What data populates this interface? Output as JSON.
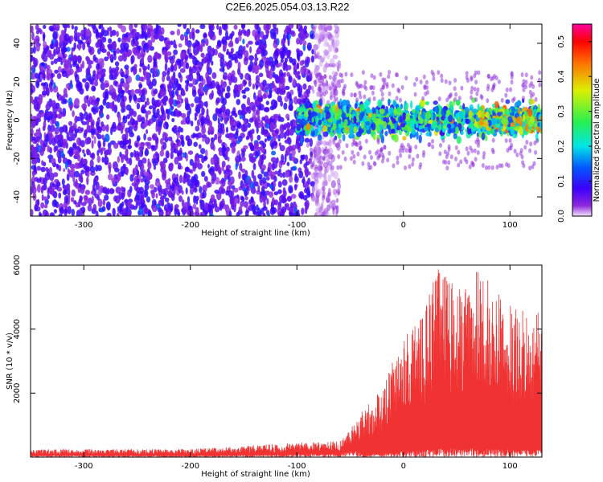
{
  "title": "C2E6.2025.054.03.13.R22",
  "chart_data": [
    {
      "type": "heatmap",
      "xlabel": "Height of straight line (km)",
      "ylabel": "Frequency (Hz)",
      "xlim": [
        -350,
        130
      ],
      "ylim": [
        -50,
        50
      ],
      "x_ticks": [
        -300,
        -200,
        -100,
        0,
        100
      ],
      "y_ticks": [
        -40,
        -20,
        0,
        20,
        40
      ],
      "colorbar": {
        "label": "Normalized spectral amplitude",
        "range": [
          0.0,
          0.55
        ],
        "ticks": [
          0.0,
          0.1,
          0.2,
          0.3,
          0.4,
          0.5
        ],
        "tick_labels": [
          "0.0",
          "0.1",
          "0.2",
          "0.3",
          "0.4",
          "0.5"
        ]
      },
      "regions": [
        {
          "x_range": [
            -350,
            -85
          ],
          "freq_range": [
            -50,
            50
          ],
          "amplitude": 0.06
        },
        {
          "x_range": [
            -85,
            -60
          ],
          "freq_range": [
            -50,
            50
          ],
          "amplitude": 0.02
        },
        {
          "x_range": [
            -100,
            130
          ],
          "freq_range": [
            -12,
            12
          ],
          "amplitude": 0.2
        },
        {
          "x_range": [
            70,
            130
          ],
          "freq_range": [
            -6,
            6
          ],
          "amplitude": 0.28
        }
      ],
      "grid": false
    },
    {
      "type": "line",
      "xlabel": "Height of straight line (km)",
      "ylabel": "SNR (10 * v/v)",
      "xlim": [
        -350,
        130
      ],
      "ylim": [
        0,
        6000
      ],
      "x_ticks": [
        -300,
        -200,
        -100,
        0,
        100
      ],
      "y_ticks": [
        2000,
        4000,
        6000
      ],
      "color": "#f03232",
      "envelope": [
        {
          "x": -350,
          "y": 250
        },
        {
          "x": -200,
          "y": 250
        },
        {
          "x": -100,
          "y": 450
        },
        {
          "x": -60,
          "y": 500
        },
        {
          "x": -40,
          "y": 1400
        },
        {
          "x": -20,
          "y": 2200
        },
        {
          "x": 0,
          "y": 3800
        },
        {
          "x": 20,
          "y": 4600
        },
        {
          "x": 30,
          "y": 6000
        },
        {
          "x": 55,
          "y": 5200
        },
        {
          "x": 70,
          "y": 5900
        },
        {
          "x": 100,
          "y": 4800
        },
        {
          "x": 130,
          "y": 4500
        }
      ],
      "grid": false
    }
  ]
}
